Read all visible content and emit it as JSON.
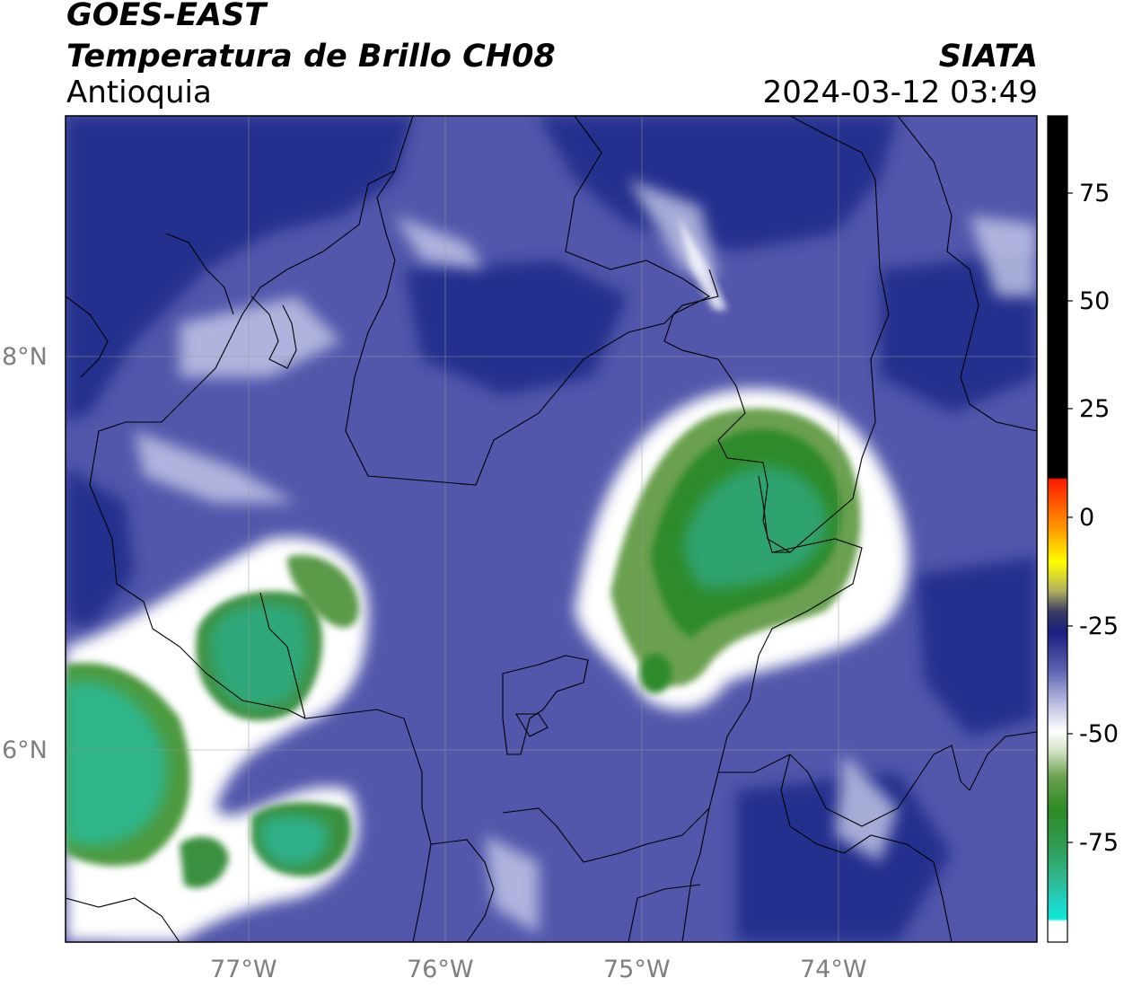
{
  "header": {
    "title_line1": "GOES-EAST",
    "title_line2": "Temperatura de Brillo CH08",
    "region": "Antioquia",
    "agency": "SIATA",
    "timestamp": "2024-03-12 03:49"
  },
  "map": {
    "lon_labels": [
      "77°W",
      "76°W",
      "75°W",
      "74°W"
    ],
    "lat_labels": [
      "8°N",
      "6°N"
    ]
  },
  "colorbar": {
    "ticks": [
      "75",
      "50",
      "25",
      "0",
      "-25",
      "-50",
      "-75"
    ],
    "colors": {
      "black": "#000000",
      "red": "#ff1a00",
      "orange": "#ff9900",
      "yellow": "#ffff00",
      "navy": "#1a1f80",
      "white": "#ffffff",
      "green": "#3a8a2a",
      "teal": "#30b58a",
      "cyan": "#10e8d8"
    }
  },
  "colors": {
    "background_blue": "#4a4fa8",
    "deep_blue": "#1f2a88",
    "convective_green": "#2f8a40"
  }
}
